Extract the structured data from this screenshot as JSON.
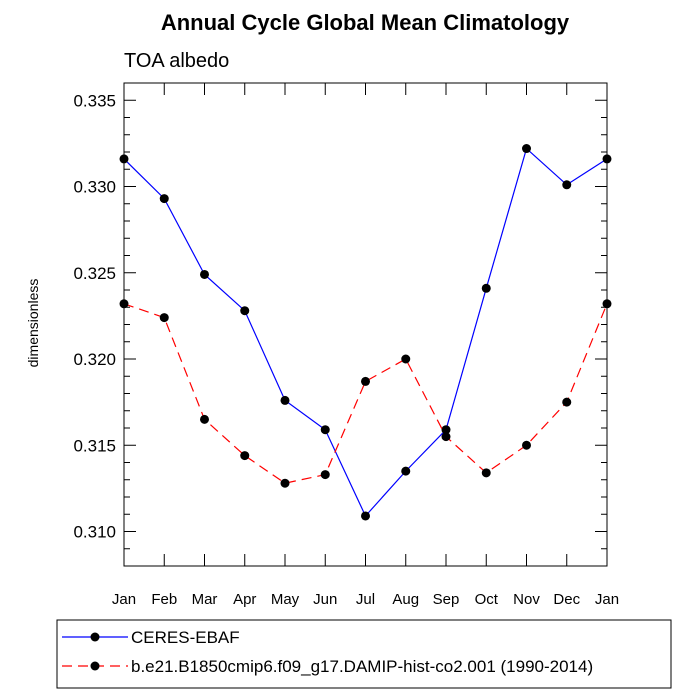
{
  "chart_data": {
    "type": "line",
    "title": "Annual Cycle Global Mean Climatology",
    "subtitle": "TOA albedo",
    "ylabel": "dimensionless",
    "xlabel": "",
    "categories": [
      "Jan",
      "Feb",
      "Mar",
      "Apr",
      "May",
      "Jun",
      "Jul",
      "Aug",
      "Sep",
      "Oct",
      "Nov",
      "Dec",
      "Jan"
    ],
    "ylim": [
      0.308,
      0.336
    ],
    "yticks": [
      0.31,
      0.315,
      0.32,
      0.325,
      0.33,
      0.335
    ],
    "ytick_labels": [
      "0.310",
      "0.315",
      "0.320",
      "0.325",
      "0.330",
      "0.335"
    ],
    "grid": false,
    "legend_placement": "bottom-left",
    "series": [
      {
        "name": "CERES-EBAF",
        "color": "#0000ff",
        "line_style": "solid",
        "marker": "filled-circle",
        "values": [
          0.3316,
          0.3293,
          0.3249,
          0.3228,
          0.3176,
          0.3159,
          0.3109,
          0.3135,
          0.3159,
          0.3241,
          0.3322,
          0.3301,
          0.3316
        ]
      },
      {
        "name": "b.e21.B1850cmip6.f09_g17.DAMIP-hist-co2.001 (1990-2014)",
        "color": "#ff0000",
        "line_style": "dashed",
        "marker": "filled-circle",
        "values": [
          0.3232,
          0.3224,
          0.3165,
          0.3144,
          0.3128,
          0.3133,
          0.3187,
          0.32,
          0.3155,
          0.3134,
          0.315,
          0.3175,
          0.3232
        ]
      }
    ]
  }
}
